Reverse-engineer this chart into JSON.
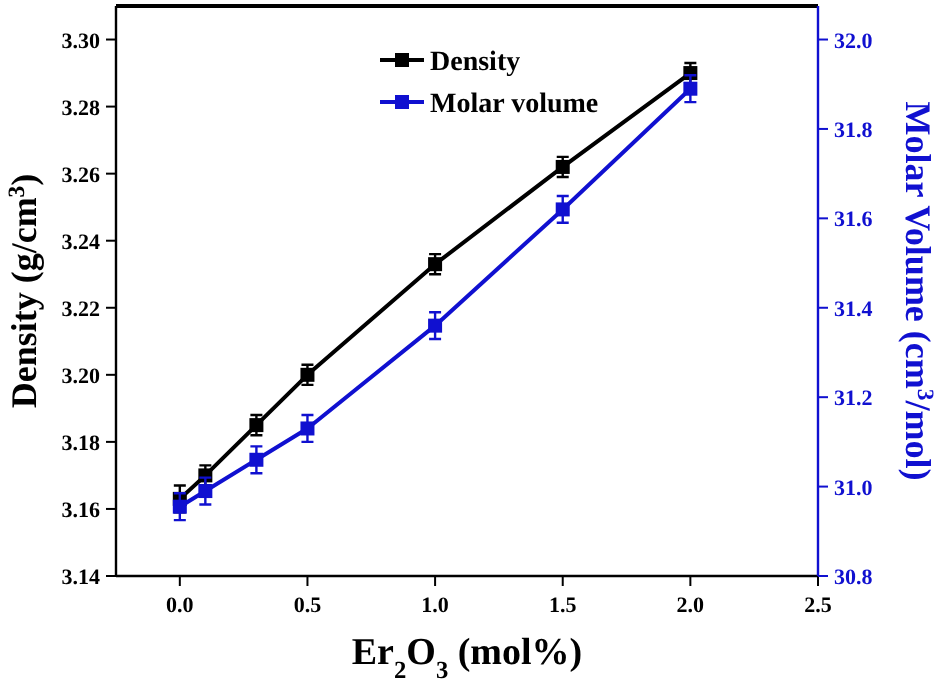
{
  "chart_data": {
    "type": "line",
    "xlabel": "Er$_{2}$O$_{3}$ (mol%)",
    "ylabel": "Density (g/cm$^{3}$)",
    "y2label": "Molar Volume (cm$^{3}$/mol)",
    "x": [
      0,
      0.1,
      0.3,
      0.5,
      1.0,
      1.5,
      2.0
    ],
    "xlim": [
      -0.25,
      2.5
    ],
    "xticks": [
      {
        "value": 0,
        "label": "0.0"
      },
      0.5,
      {
        "value": 1,
        "label": "1.0"
      },
      1.5,
      {
        "value": 2,
        "label": "2.0"
      },
      2.5
    ],
    "ylim": [
      3.14,
      3.31
    ],
    "yticks": [
      {
        "value": 3.14,
        "label": "3.14"
      },
      {
        "value": 3.16,
        "label": "3.16"
      },
      {
        "value": 3.18,
        "label": "3.18"
      },
      {
        "value": 3.2,
        "label": "3.20"
      },
      {
        "value": 3.22,
        "label": "3.22"
      },
      {
        "value": 3.24,
        "label": "3.24"
      },
      {
        "value": 3.26,
        "label": "3.26"
      },
      {
        "value": 3.28,
        "label": "3.28"
      },
      {
        "value": 3.3,
        "label": "3.30"
      }
    ],
    "y2lim": [
      30.8,
      32.075
    ],
    "y2ticks": [
      {
        "value": 30.8,
        "label": "30.8"
      },
      {
        "value": 31,
        "label": "31.0"
      },
      {
        "value": 31.2,
        "label": "31.2"
      },
      {
        "value": 31.4,
        "label": "31.4"
      },
      {
        "value": 31.6,
        "label": "31.6"
      },
      {
        "value": 31.8,
        "label": "31.8"
      },
      {
        "value": 32,
        "label": "32.0"
      }
    ],
    "series": [
      {
        "name": "Density",
        "color": "#000000",
        "values": [
          3.163,
          3.17,
          3.185,
          3.2,
          3.233,
          3.262,
          3.29
        ],
        "errors": [
          0.004,
          0.003,
          0.003,
          0.003,
          0.003,
          0.003,
          0.003
        ]
      },
      {
        "name": "Molar volume",
        "color": "#1010d0",
        "axis": "y2",
        "values": [
          30.955,
          30.99,
          31.06,
          31.13,
          31.36,
          31.62,
          31.89
        ],
        "errors": [
          0.03,
          0.03,
          0.03,
          0.03,
          0.03,
          0.03,
          0.03
        ]
      }
    ],
    "marker": "square",
    "line_style": "solid",
    "legend": "top",
    "grid": false
  }
}
